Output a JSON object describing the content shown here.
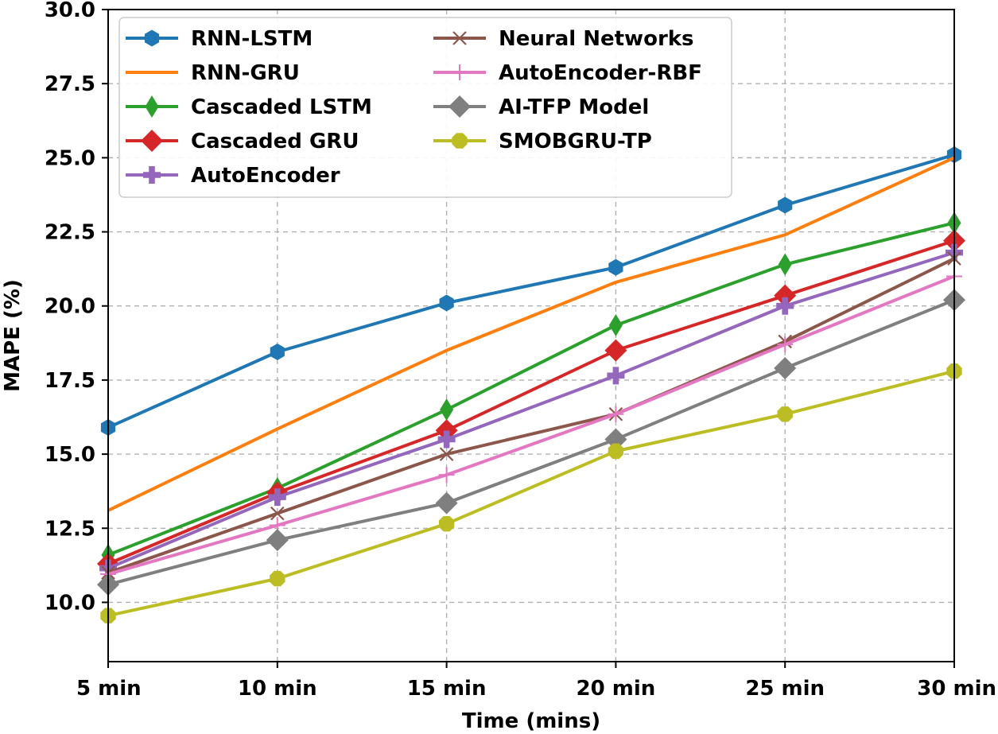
{
  "chart_data": {
    "type": "line",
    "title": "",
    "xlabel": "Time (mins)",
    "ylabel": "MAPE (%)",
    "categories": [
      "5 min",
      "10 min",
      "15 min",
      "20 min",
      "25 min",
      "30 min"
    ],
    "ylim": [
      8.0,
      30.0
    ],
    "yticks": [
      "10.0",
      "12.5",
      "15.0",
      "17.5",
      "20.0",
      "22.5",
      "25.0",
      "27.5",
      "30.0"
    ],
    "grid": true,
    "legend_position": "upper-left",
    "series": [
      {
        "name": "RNN-LSTM",
        "color": "#1f77b4",
        "marker": "hexagon",
        "values": [
          15.9,
          18.45,
          20.1,
          21.3,
          23.4,
          25.1
        ]
      },
      {
        "name": "RNN-GRU",
        "color": "#ff7f0e",
        "marker": "none",
        "values": [
          13.1,
          15.85,
          18.5,
          20.8,
          22.4,
          25.0
        ]
      },
      {
        "name": "Cascaded LSTM",
        "color": "#2ca02c",
        "marker": "thin-diamond",
        "values": [
          11.6,
          13.85,
          16.5,
          19.35,
          21.4,
          22.8
        ]
      },
      {
        "name": "Cascaded GRU",
        "color": "#d62728",
        "marker": "diamond",
        "values": [
          11.3,
          13.7,
          15.8,
          18.5,
          20.35,
          22.2
        ]
      },
      {
        "name": "AutoEncoder",
        "color": "#9467bd",
        "marker": "plus-filled",
        "values": [
          11.15,
          13.55,
          15.5,
          17.65,
          20.0,
          21.8
        ]
      },
      {
        "name": "Neural Networks",
        "color": "#8c564b",
        "marker": "x",
        "values": [
          11.0,
          13.0,
          15.0,
          16.35,
          18.8,
          21.6
        ]
      },
      {
        "name": "AutoEncoder-RBF",
        "color": "#e377c2",
        "marker": "plus",
        "values": [
          10.95,
          12.6,
          14.3,
          16.35,
          18.7,
          21.0
        ]
      },
      {
        "name": "AI-TFP Model",
        "color": "#7f7f7f",
        "marker": "diamond",
        "values": [
          10.6,
          12.1,
          13.35,
          15.5,
          17.9,
          20.2
        ]
      },
      {
        "name": "SMOBGRU-TP",
        "color": "#bcbd22",
        "marker": "octagon",
        "values": [
          9.55,
          10.8,
          12.65,
          15.1,
          16.35,
          17.8
        ]
      }
    ]
  }
}
